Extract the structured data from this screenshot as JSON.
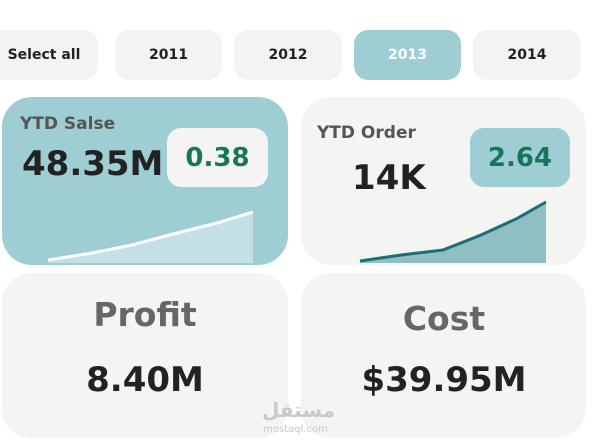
{
  "filters": [
    "Select all",
    "2011",
    "2012",
    "2013",
    "2014"
  ],
  "selected_filter": 3,
  "cards": [
    {
      "title": "YTD Salse",
      "value": "48.35M",
      "badge": "0.38"
    },
    {
      "title": "YTD Order",
      "value": "14K",
      "badge": "2.64"
    },
    {
      "title": "Profit",
      "value": "8.40M"
    },
    {
      "title": "Cost",
      "value": "$39.95M"
    }
  ],
  "watermark": {
    "arabic": "مستقل",
    "latin": "mostaql.com"
  }
}
